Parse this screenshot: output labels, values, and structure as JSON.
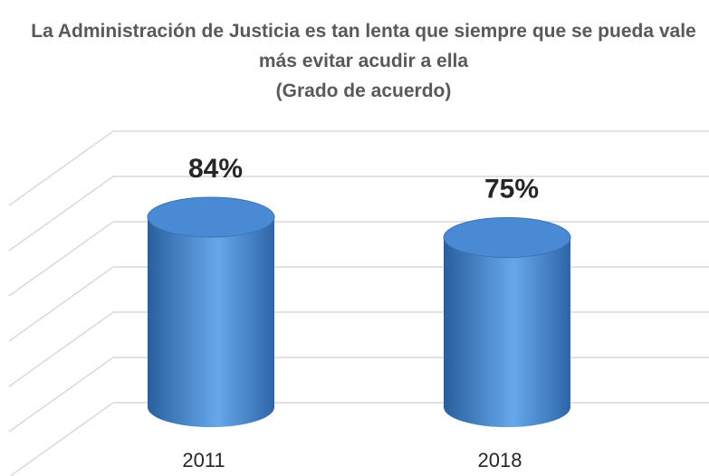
{
  "chart_data": {
    "type": "cylinder",
    "title": "La Administración de Justicia es tan lenta que siempre que se pueda vale más evitar acudir a ella",
    "subtitle": "(Grado de acuerdo)",
    "categories": [
      "2011",
      "2018"
    ],
    "values": [
      84,
      75
    ],
    "value_labels": [
      "84%",
      "75%"
    ],
    "color": "#4a8ad4",
    "ylim": [
      0,
      120
    ],
    "yticks": [
      0,
      20,
      40,
      60,
      80,
      100,
      120
    ],
    "grid": true
  }
}
